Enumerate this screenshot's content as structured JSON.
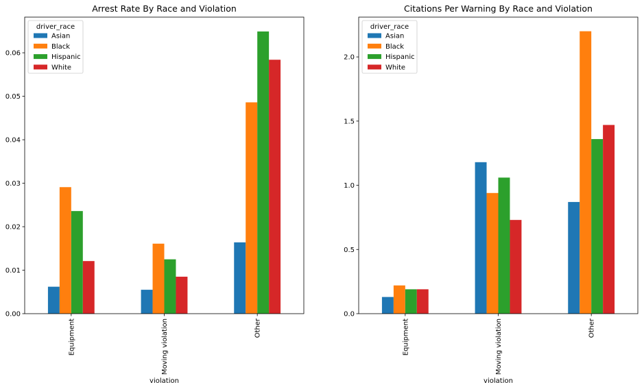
{
  "colors": {
    "Asian": "#1f77b4",
    "Black": "#ff7f0e",
    "Hispanic": "#2ca02c",
    "White": "#d62728"
  },
  "chart_data": [
    {
      "type": "bar",
      "title": "Arrest Rate By Race and Violation",
      "xlabel": "violation",
      "ylabel": "",
      "categories": [
        "Equipment",
        "Moving violation",
        "Other"
      ],
      "legend_title": "driver_race",
      "legend_position": "top-left",
      "ylim": [
        0,
        0.0682
      ],
      "yticks": [
        0.0,
        0.01,
        0.02,
        0.03,
        0.04,
        0.05,
        0.06
      ],
      "ytick_labels": [
        "0.00",
        "0.01",
        "0.02",
        "0.03",
        "0.04",
        "0.05",
        "0.06"
      ],
      "series": [
        {
          "name": "Asian",
          "values": [
            0.0062,
            0.0055,
            0.0164
          ]
        },
        {
          "name": "Black",
          "values": [
            0.0291,
            0.0161,
            0.0486
          ]
        },
        {
          "name": "Hispanic",
          "values": [
            0.0236,
            0.0125,
            0.0649
          ]
        },
        {
          "name": "White",
          "values": [
            0.0121,
            0.0085,
            0.0584
          ]
        }
      ]
    },
    {
      "type": "bar",
      "title": "Citations Per Warning By Race and Violation",
      "xlabel": "violation",
      "ylabel": "",
      "categories": [
        "Equipment",
        "Moving violation",
        "Other"
      ],
      "legend_title": "driver_race",
      "legend_position": "top-left",
      "ylim": [
        0,
        2.31
      ],
      "yticks": [
        0.0,
        0.5,
        1.0,
        1.5,
        2.0
      ],
      "ytick_labels": [
        "0.0",
        "0.5",
        "1.0",
        "1.5",
        "2.0"
      ],
      "series": [
        {
          "name": "Asian",
          "values": [
            0.13,
            1.18,
            0.87
          ]
        },
        {
          "name": "Black",
          "values": [
            0.22,
            0.94,
            2.2
          ]
        },
        {
          "name": "Hispanic",
          "values": [
            0.19,
            1.06,
            1.36
          ]
        },
        {
          "name": "White",
          "values": [
            0.19,
            0.73,
            1.47
          ]
        }
      ]
    }
  ]
}
